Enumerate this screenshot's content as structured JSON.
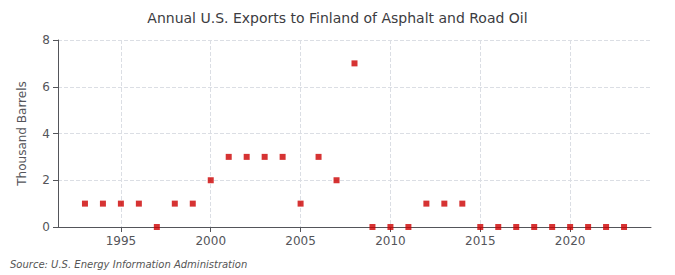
{
  "chart_data": {
    "type": "scatter",
    "title": "Annual U.S. Exports to Finland of Asphalt and Road Oil",
    "ylabel": "Thousand Barrels",
    "source": "Source: U.S. Energy Information Administration",
    "x": [
      1993,
      1994,
      1995,
      1996,
      1997,
      1998,
      1999,
      2000,
      2001,
      2002,
      2003,
      2004,
      2005,
      2006,
      2007,
      2008,
      2009,
      2010,
      2011,
      2012,
      2013,
      2014,
      2015,
      2016,
      2017,
      2018,
      2019,
      2020,
      2021,
      2022,
      2023
    ],
    "values": [
      1,
      1,
      1,
      1,
      0,
      1,
      1,
      2,
      3,
      3,
      3,
      3,
      1,
      3,
      2,
      7,
      0,
      0,
      0,
      1,
      1,
      1,
      0,
      0,
      0,
      0,
      0,
      0,
      0,
      0,
      0
    ],
    "color": "#cc0000",
    "marker": "square",
    "xlim": [
      1991.5,
      2024.5
    ],
    "xticks": [
      1995,
      2000,
      2005,
      2010,
      2015,
      2020
    ],
    "ylim": [
      0,
      8
    ],
    "yticks": [
      0,
      2,
      4,
      6,
      8
    ],
    "grid": true
  }
}
